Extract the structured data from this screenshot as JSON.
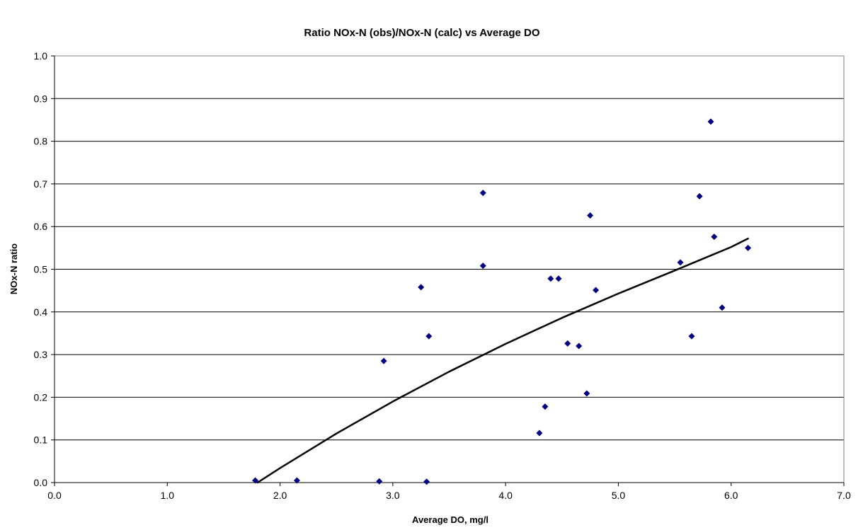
{
  "chart_data": {
    "type": "scatter",
    "title": "Ratio NOx-N (obs)/NOx-N (calc) vs Average DO",
    "xlabel": "Average DO, mg/l",
    "ylabel": "NOx-N ratio",
    "xlim": [
      0,
      7
    ],
    "ylim": [
      0,
      1
    ],
    "x_ticks": [
      0,
      1,
      2,
      3,
      4,
      5,
      6,
      7
    ],
    "x_tick_labels": [
      "0.0",
      "1.0",
      "2.0",
      "3.0",
      "4.0",
      "5.0",
      "6.0",
      "7.0"
    ],
    "y_ticks": [
      0,
      0.1,
      0.2,
      0.3,
      0.4,
      0.5,
      0.6,
      0.7,
      0.8,
      0.9,
      1.0
    ],
    "y_tick_labels": [
      "0.0",
      "0.1",
      "0.2",
      "0.3",
      "0.4",
      "0.5",
      "0.6",
      "0.7",
      "0.8",
      "0.9",
      "1.0"
    ],
    "grid": "horizontal",
    "legend": "none",
    "series": [
      {
        "marker": "diamond",
        "color": "#000080",
        "points": [
          {
            "x": 1.78,
            "y": 0.005
          },
          {
            "x": 2.15,
            "y": 0.005
          },
          {
            "x": 2.88,
            "y": 0.003
          },
          {
            "x": 2.92,
            "y": 0.285
          },
          {
            "x": 3.25,
            "y": 0.458
          },
          {
            "x": 3.3,
            "y": 0.002
          },
          {
            "x": 3.32,
            "y": 0.343
          },
          {
            "x": 3.8,
            "y": 0.679
          },
          {
            "x": 3.8,
            "y": 0.508
          },
          {
            "x": 4.3,
            "y": 0.116
          },
          {
            "x": 4.35,
            "y": 0.178
          },
          {
            "x": 4.4,
            "y": 0.478
          },
          {
            "x": 4.47,
            "y": 0.478
          },
          {
            "x": 4.55,
            "y": 0.326
          },
          {
            "x": 4.65,
            "y": 0.32
          },
          {
            "x": 4.72,
            "y": 0.209
          },
          {
            "x": 4.75,
            "y": 0.626
          },
          {
            "x": 4.8,
            "y": 0.451
          },
          {
            "x": 5.55,
            "y": 0.516
          },
          {
            "x": 5.65,
            "y": 0.343
          },
          {
            "x": 5.72,
            "y": 0.671
          },
          {
            "x": 5.82,
            "y": 0.846
          },
          {
            "x": 5.85,
            "y": 0.576
          },
          {
            "x": 5.92,
            "y": 0.41
          },
          {
            "x": 6.15,
            "y": 0.55
          }
        ]
      },
      {
        "type": "line",
        "color": "#000000",
        "points": [
          {
            "x": 1.8,
            "y": 0.0
          },
          {
            "x": 2.0,
            "y": 0.034
          },
          {
            "x": 2.5,
            "y": 0.115
          },
          {
            "x": 3.0,
            "y": 0.19
          },
          {
            "x": 3.5,
            "y": 0.26
          },
          {
            "x": 4.0,
            "y": 0.325
          },
          {
            "x": 4.5,
            "y": 0.386
          },
          {
            "x": 5.0,
            "y": 0.443
          },
          {
            "x": 5.5,
            "y": 0.497
          },
          {
            "x": 6.0,
            "y": 0.552
          },
          {
            "x": 6.15,
            "y": 0.572
          }
        ]
      }
    ]
  }
}
